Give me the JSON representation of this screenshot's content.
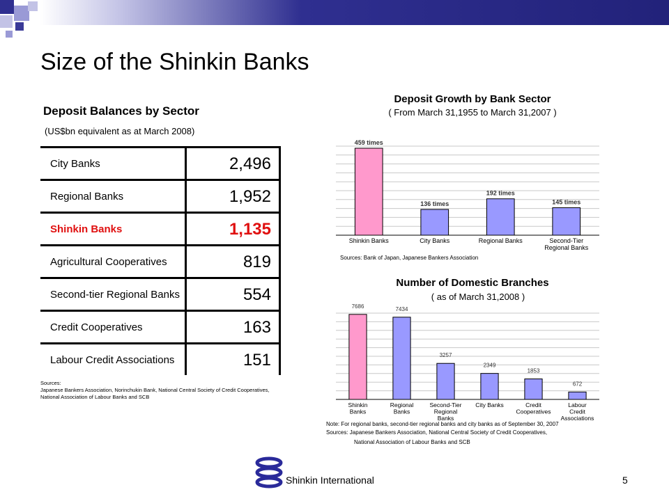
{
  "slide": {
    "title": "Size of the Shinkin Banks",
    "page_number": "5",
    "footer_text": "Shinkin International"
  },
  "deposit_table": {
    "heading": "Deposit Balances by Sector",
    "unit": "(US$bn equivalent as at March 2008)",
    "rows": [
      {
        "label": "City Banks",
        "value": "2,496",
        "highlight": false
      },
      {
        "label": "Regional Banks",
        "value": "1,952",
        "highlight": false
      },
      {
        "label": "Shinkin Banks",
        "value": "1,135",
        "highlight": true
      },
      {
        "label": "Agricultural Cooperatives",
        "value": "819",
        "highlight": false
      },
      {
        "label": "Second-tier Regional Banks",
        "value": "554",
        "highlight": false
      },
      {
        "label": "Credit Cooperatives",
        "value": "163",
        "highlight": false
      },
      {
        "label": "Labour Credit Associations",
        "value": "151",
        "highlight": false
      }
    ],
    "sources_label": "Sources:",
    "sources_text": "Japanese Bankers Association, Norinchukin Bank, National Central Society of Credit Cooperatives, National Association of Labour Banks and SCB",
    "highlight_color": "#e01010"
  },
  "chart_data": [
    {
      "type": "bar",
      "title": "Deposit Growth by Bank Sector",
      "subtitle": "( From March 31,1955 to March 31,2007 )",
      "categories": [
        "Shinkin Banks",
        "City Banks",
        "Regional Banks",
        "Second-Tier Regional Banks"
      ],
      "values": [
        459,
        136,
        192,
        145
      ],
      "data_labels": [
        "459 times",
        "136 times",
        "192 times",
        "145 times"
      ],
      "bar_colors": [
        "#ff99cc",
        "#9999ff",
        "#9999ff",
        "#9999ff"
      ],
      "ylim": [
        0,
        470
      ],
      "grid": true,
      "sources": "Sources: Bank of Japan, Japanese Bankers Association"
    },
    {
      "type": "bar",
      "title": "Number of Domestic Branches",
      "subtitle": "( as of March 31,2008 )",
      "categories": [
        "Shinkin Banks",
        "Regional Banks",
        "Second-Tier Regional Banks",
        "City Banks",
        "Credit Cooperatives",
        "Labour Credit Associations"
      ],
      "values": [
        7686,
        7434,
        3257,
        2349,
        1853,
        672
      ],
      "data_labels": [
        "7686",
        "7434",
        "3257",
        "2349",
        "1853",
        "672"
      ],
      "bar_colors": [
        "#ff99cc",
        "#9999ff",
        "#9999ff",
        "#9999ff",
        "#9999ff",
        "#9999ff"
      ],
      "ylim": [
        0,
        7800
      ],
      "grid": true,
      "note": "Note: For regional banks, second-tier regional banks and city banks as of September 30, 2007",
      "sources_line1": "Sources: Japanese Bankers Association, National Central Society of Credit Cooperatives,",
      "sources_line2": "National Association of Labour Banks and SCB"
    }
  ],
  "icons": {
    "logo": "shinkin-logo-icon",
    "logo_color": "#2a2a9a"
  }
}
